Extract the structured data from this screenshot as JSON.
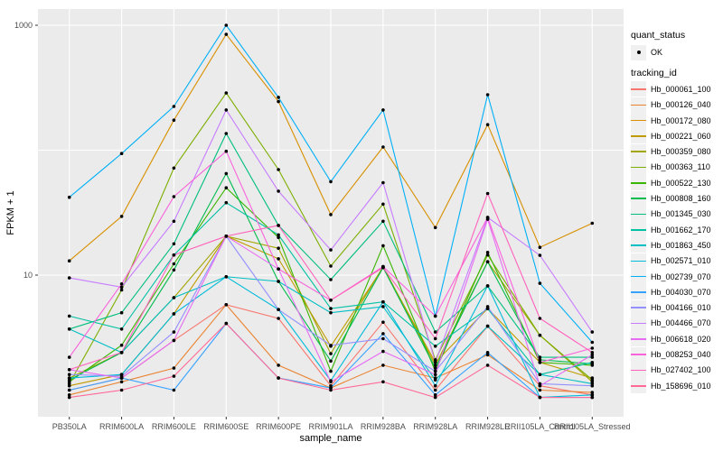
{
  "chart_data": {
    "type": "line",
    "title": "",
    "xlabel": "sample_name",
    "ylabel": "FPKM + 1",
    "y_scale": "log10",
    "y_tick_labels": [
      "1000",
      "10"
    ],
    "y_tick_values": [
      1000,
      10
    ],
    "ylim": [
      0.75,
      1350
    ],
    "grid": "major white gridlines on gray panel",
    "legend_position": "right",
    "panel_background": "#EBEBEB",
    "gridline_color": "#FFFFFF",
    "point_color": "#000000",
    "tick_label_color": "#4D4D4D",
    "categories": [
      "PB350LA",
      "RRIM600LA",
      "RRIM600LE",
      "RRIM600SE",
      "RRIM600PE",
      "RRIM901LA",
      "RRIM928BA",
      "RRIM928LA",
      "RRIM928LE",
      "RRII105LA_Control",
      "RRII105LA_Stressed"
    ],
    "legend": {
      "quant_status_title": "quant_status",
      "quant_status_items": [
        "OK"
      ],
      "tracking_id_title": "tracking_id"
    },
    "series": [
      {
        "name": "Hb_000061_100",
        "color": "#F8766D",
        "values": [
          1.2,
          1.5,
          3.0,
          5.8,
          4.5,
          1.3,
          4.2,
          1.2,
          3.9,
          1.3,
          1.1
        ]
      },
      {
        "name": "Hb_000126_040",
        "color": "#EA8331",
        "values": [
          1.1,
          1.4,
          1.8,
          5.8,
          1.9,
          1.25,
          1.9,
          1.5,
          2.3,
          1.2,
          1.15
        ]
      },
      {
        "name": "Hb_000172_080",
        "color": "#D89000",
        "values": [
          13,
          29.5,
          174,
          845,
          245,
          30.5,
          106,
          24,
          160,
          16.7,
          26
        ]
      },
      {
        "name": "Hb_000221_060",
        "color": "#C09B00",
        "values": [
          1.3,
          1.6,
          4.9,
          20.5,
          13.5,
          2.7,
          11.5,
          2.0,
          5.4,
          2.0,
          1.5
        ]
      },
      {
        "name": "Hb_000359_080",
        "color": "#A3A500",
        "values": [
          1.5,
          2.4,
          6.6,
          20.5,
          16.4,
          2.35,
          11.7,
          1.9,
          12.8,
          3.3,
          1.4
        ]
      },
      {
        "name": "Hb_000363_110",
        "color": "#7CAE00",
        "values": [
          1.35,
          7.6,
          72,
          287,
          70,
          11.8,
          37,
          2.1,
          14.5,
          3.3,
          1.45
        ]
      },
      {
        "name": "Hb_000522_130",
        "color": "#39B600",
        "values": [
          1.4,
          2.75,
          12.3,
          50,
          20,
          1.7,
          17.2,
          1.7,
          15.2,
          2.0,
          1.9
        ]
      },
      {
        "name": "Hb_000808_160",
        "color": "#00BB4E",
        "values": [
          1.45,
          2.4,
          11,
          65,
          8.9,
          2.05,
          11.5,
          1.8,
          12.8,
          2.1,
          1.95
        ]
      },
      {
        "name": "Hb_001345_030",
        "color": "#00BF7D",
        "values": [
          3.7,
          5.0,
          17.8,
          136,
          25,
          9.2,
          27,
          3.5,
          8.2,
          2.2,
          2.2
        ]
      },
      {
        "name": "Hb_001662_170",
        "color": "#00C1A3",
        "values": [
          4.7,
          3.7,
          14.5,
          38,
          21,
          5.4,
          6.1,
          2.7,
          5.4,
          1.6,
          2.0
        ]
      },
      {
        "name": "Hb_001863_450",
        "color": "#00BFC4",
        "values": [
          3.7,
          2.4,
          6.6,
          9.7,
          8.9,
          5.0,
          5.6,
          1.45,
          3.9,
          1.6,
          1.35
        ]
      },
      {
        "name": "Hb_002571_010",
        "color": "#00BBDA",
        "values": [
          1.5,
          1.6,
          4.9,
          9.7,
          5.3,
          1.43,
          6.1,
          1.3,
          8.2,
          1.05,
          1.1
        ]
      },
      {
        "name": "Hb_002739_070",
        "color": "#00B0F6",
        "values": [
          42,
          94,
          224,
          1000,
          265,
          56,
          210,
          4.7,
          278,
          8.6,
          2.9
        ]
      },
      {
        "name": "Hb_004030_070",
        "color": "#35A2FF",
        "values": [
          1.2,
          1.5,
          1.2,
          4.1,
          1.5,
          1.25,
          3.4,
          1.1,
          2.4,
          1.05,
          1.05
        ]
      },
      {
        "name": "Hb_004166_010",
        "color": "#9590FF",
        "values": [
          1.6,
          1.55,
          3.5,
          20.5,
          5.3,
          2.74,
          3.1,
          1.7,
          5.6,
          1.35,
          1.3
        ]
      },
      {
        "name": "Hb_004466_070",
        "color": "#C77CFF",
        "values": [
          9.5,
          8.0,
          27,
          210,
          47,
          15.9,
          55,
          2.0,
          29,
          14.4,
          3.5
        ]
      },
      {
        "name": "Hb_006618_020",
        "color": "#E76BF3",
        "values": [
          1.75,
          1.5,
          3.0,
          20.5,
          11.2,
          1.4,
          2.45,
          1.6,
          28,
          1.3,
          2.3
        ]
      },
      {
        "name": "Hb_008253_040",
        "color": "#FA62DB",
        "values": [
          2.2,
          8.5,
          42.5,
          98,
          11.2,
          6.3,
          11.7,
          4.7,
          29,
          2.0,
          2.6
        ]
      },
      {
        "name": "Hb_027402_100",
        "color": "#FF62BC",
        "values": [
          1.75,
          2.4,
          14.5,
          20.5,
          25,
          6.3,
          11.5,
          3.1,
          45,
          4.5,
          2.4
        ]
      },
      {
        "name": "Hb_158696_010",
        "color": "#FF6A98",
        "values": [
          1.05,
          1.2,
          1.55,
          4.1,
          1.5,
          1.2,
          1.4,
          1.05,
          1.9,
          1.05,
          1.05
        ]
      }
    ]
  }
}
